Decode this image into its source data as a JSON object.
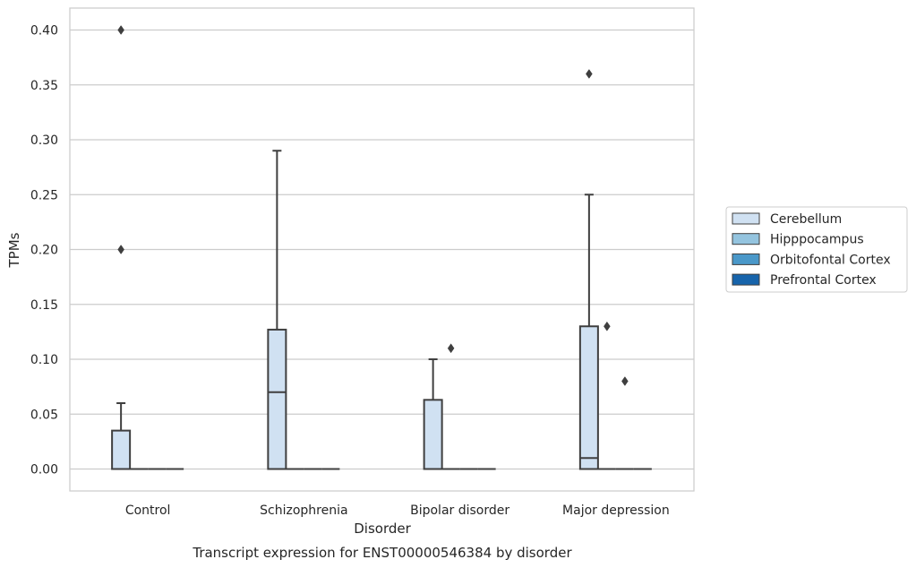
{
  "chart_data": {
    "type": "box",
    "title": "Transcript expression for ENST00000546384 by disorder",
    "xlabel": "Disorder",
    "ylabel": "TPMs",
    "categories": [
      "Control",
      "Schizophrenia",
      "Bipolar disorder",
      "Major depression"
    ],
    "ylim": [
      -0.02,
      0.42
    ],
    "yticks": [
      0.0,
      0.05,
      0.1,
      0.15,
      0.2,
      0.25,
      0.3,
      0.35,
      0.4
    ],
    "ytick_labels": [
      "0.00",
      "0.05",
      "0.10",
      "0.15",
      "0.20",
      "0.25",
      "0.30",
      "0.35",
      "0.40"
    ],
    "grid": "horizontal",
    "legend_position": "right",
    "series": [
      {
        "name": "Cerebellum",
        "color": "#d0e1f2",
        "boxes": [
          {
            "whislo": 0.0,
            "q1": 0.0,
            "med": 0.0,
            "q3": 0.035,
            "whishi": 0.06,
            "fliers": [
              0.2,
              0.4
            ]
          },
          {
            "whislo": 0.0,
            "q1": 0.0,
            "med": 0.07,
            "q3": 0.127,
            "whishi": 0.29,
            "fliers": []
          },
          {
            "whislo": 0.0,
            "q1": 0.0,
            "med": 0.0,
            "q3": 0.063,
            "whishi": 0.1,
            "fliers": []
          },
          {
            "whislo": 0.0,
            "q1": 0.0,
            "med": 0.01,
            "q3": 0.13,
            "whishi": 0.25,
            "fliers": [
              0.36
            ]
          }
        ]
      },
      {
        "name": "Hipppocampus",
        "color": "#94c4df",
        "boxes": [
          {
            "whislo": 0.0,
            "q1": 0.0,
            "med": 0.0,
            "q3": 0.0,
            "whishi": 0.0,
            "fliers": []
          },
          {
            "whislo": 0.0,
            "q1": 0.0,
            "med": 0.0,
            "q3": 0.0,
            "whishi": 0.0,
            "fliers": []
          },
          {
            "whislo": 0.0,
            "q1": 0.0,
            "med": 0.0,
            "q3": 0.0,
            "whishi": 0.0,
            "fliers": [
              0.11
            ]
          },
          {
            "whislo": 0.0,
            "q1": 0.0,
            "med": 0.0,
            "q3": 0.0,
            "whishi": 0.0,
            "fliers": [
              0.13
            ]
          }
        ]
      },
      {
        "name": "Orbitofontal Cortex",
        "color": "#4a98c9",
        "boxes": [
          {
            "whislo": 0.0,
            "q1": 0.0,
            "med": 0.0,
            "q3": 0.0,
            "whishi": 0.0,
            "fliers": []
          },
          {
            "whislo": 0.0,
            "q1": 0.0,
            "med": 0.0,
            "q3": 0.0,
            "whishi": 0.0,
            "fliers": []
          },
          {
            "whislo": 0.0,
            "q1": 0.0,
            "med": 0.0,
            "q3": 0.0,
            "whishi": 0.0,
            "fliers": []
          },
          {
            "whislo": 0.0,
            "q1": 0.0,
            "med": 0.0,
            "q3": 0.0,
            "whishi": 0.0,
            "fliers": [
              0.08
            ]
          }
        ]
      },
      {
        "name": "Prefrontal Cortex",
        "color": "#1764ab",
        "boxes": [
          {
            "whislo": 0.0,
            "q1": 0.0,
            "med": 0.0,
            "q3": 0.0,
            "whishi": 0.0,
            "fliers": []
          },
          {
            "whislo": 0.0,
            "q1": 0.0,
            "med": 0.0,
            "q3": 0.0,
            "whishi": 0.0,
            "fliers": []
          },
          {
            "whislo": 0.0,
            "q1": 0.0,
            "med": 0.0,
            "q3": 0.0,
            "whishi": 0.0,
            "fliers": []
          },
          {
            "whislo": 0.0,
            "q1": 0.0,
            "med": 0.0,
            "q3": 0.0,
            "whishi": 0.0,
            "fliers": []
          }
        ]
      }
    ]
  }
}
